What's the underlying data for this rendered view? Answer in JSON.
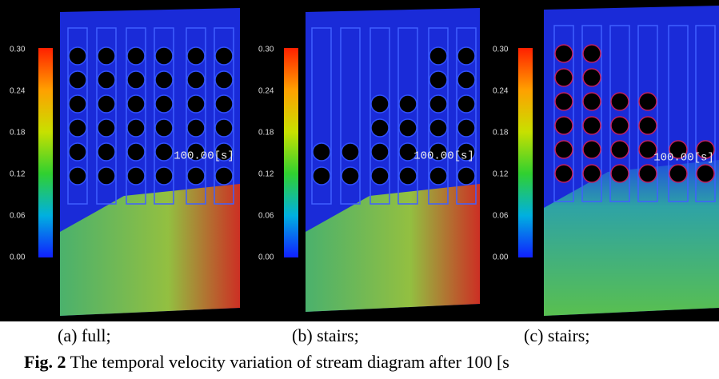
{
  "figure": {
    "panels": [
      {
        "colorbar_ticks": [
          "0.30",
          "0.24",
          "0.18",
          "0.12",
          "0.06",
          "0.00"
        ],
        "time_label": "100.00[s]",
        "caption": "(a) full;"
      },
      {
        "colorbar_ticks": [
          "0.30",
          "0.24",
          "0.18",
          "0.12",
          "0.06",
          "0.00"
        ],
        "time_label": "100.00[s]",
        "caption": "(b) stairs;"
      },
      {
        "colorbar_ticks": [
          "0.30",
          "0.24",
          "0.18",
          "0.12",
          "0.06",
          "0.00"
        ],
        "time_label": "100.00[s]",
        "caption": "(c) stairs;"
      }
    ],
    "caption": {
      "label": "Fig. 2",
      "text": " The temporal velocity variation of stream diagram after 100 [s"
    }
  }
}
